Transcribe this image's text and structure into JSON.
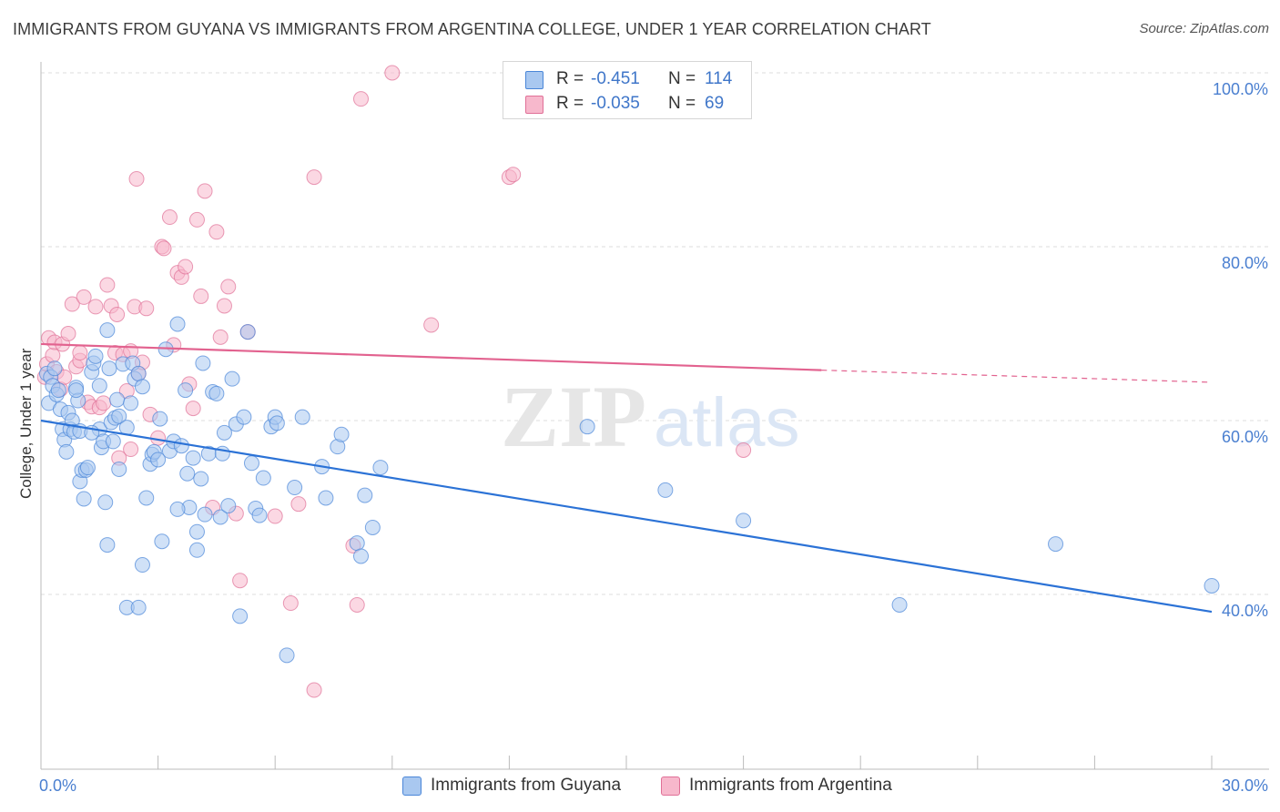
{
  "title": "IMMIGRANTS FROM GUYANA VS IMMIGRANTS FROM ARGENTINA COLLEGE, UNDER 1 YEAR CORRELATION CHART",
  "source": "Source: ZipAtlas.com",
  "watermark": "ZIPatlas",
  "legend": {
    "rows": [
      {
        "r_label": "R =",
        "r_value": "-0.451",
        "n_label": "N =",
        "n_value": "114",
        "color": "#a9c8f0"
      },
      {
        "r_label": "R =",
        "r_value": "-0.035",
        "n_label": "N =",
        "n_value": "69",
        "color": "#f7b8cc"
      }
    ]
  },
  "bottom_legend": [
    {
      "label": "Immigrants from Guyana",
      "color": "#a9c8f0"
    },
    {
      "label": "Immigrants from Argentina",
      "color": "#f7b8cc"
    }
  ],
  "chart_data": {
    "type": "scatter",
    "title": "IMMIGRANTS FROM GUYANA VS IMMIGRANTS FROM ARGENTINA COLLEGE, UNDER 1 YEAR CORRELATION CHART",
    "xlabel": "",
    "ylabel": "College, Under 1 year",
    "xlim": [
      0,
      30
    ],
    "ylim": [
      20,
      102
    ],
    "x_ticks": [
      "0.0%",
      "30.0%"
    ],
    "y_ticks": [
      "100.0%",
      "80.0%",
      "60.0%",
      "40.0%"
    ],
    "y_tick_values": [
      100,
      80,
      60,
      40
    ],
    "grid": true,
    "series": [
      {
        "name": "Immigrants from Guyana",
        "color": "#4a86d8",
        "fill": "#a9c8f0",
        "trend": {
          "x": [
            0,
            30
          ],
          "y": [
            60.0,
            38.0
          ],
          "dashed_from": 30
        },
        "points": [
          [
            0.15,
            65.4
          ],
          [
            0.2,
            62.0
          ],
          [
            0.25,
            65.0
          ],
          [
            0.3,
            64.0
          ],
          [
            0.35,
            66.0
          ],
          [
            0.4,
            63.0
          ],
          [
            0.45,
            63.5
          ],
          [
            0.5,
            61.3
          ],
          [
            0.55,
            59.0
          ],
          [
            0.6,
            57.8
          ],
          [
            0.65,
            56.4
          ],
          [
            0.7,
            60.9
          ],
          [
            0.75,
            59.0
          ],
          [
            0.8,
            60.0
          ],
          [
            0.85,
            58.7
          ],
          [
            0.9,
            63.8
          ],
          [
            0.95,
            62.3
          ],
          [
            1.0,
            58.8
          ],
          [
            1.0,
            53.0
          ],
          [
            1.05,
            54.3
          ],
          [
            1.1,
            51.0
          ],
          [
            1.15,
            54.3
          ],
          [
            1.2,
            54.6
          ],
          [
            1.3,
            65.6
          ],
          [
            1.35,
            66.6
          ],
          [
            1.4,
            67.4
          ],
          [
            1.5,
            64.0
          ],
          [
            1.5,
            59.0
          ],
          [
            1.55,
            56.9
          ],
          [
            1.6,
            57.6
          ],
          [
            1.65,
            50.6
          ],
          [
            1.7,
            70.4
          ],
          [
            1.75,
            66.0
          ],
          [
            1.8,
            59.8
          ],
          [
            1.85,
            57.6
          ],
          [
            1.9,
            60.3
          ],
          [
            1.95,
            62.4
          ],
          [
            2.0,
            60.5
          ],
          [
            2.0,
            54.4
          ],
          [
            2.1,
            66.5
          ],
          [
            2.2,
            59.2
          ],
          [
            2.3,
            62.0
          ],
          [
            2.35,
            66.6
          ],
          [
            2.4,
            64.8
          ],
          [
            2.5,
            65.4
          ],
          [
            2.6,
            63.9
          ],
          [
            2.7,
            51.1
          ],
          [
            2.8,
            55.0
          ],
          [
            2.85,
            56.1
          ],
          [
            2.9,
            56.4
          ],
          [
            3.0,
            55.5
          ],
          [
            3.05,
            60.2
          ],
          [
            3.1,
            46.1
          ],
          [
            3.2,
            68.2
          ],
          [
            3.3,
            56.5
          ],
          [
            3.4,
            57.6
          ],
          [
            3.5,
            71.1
          ],
          [
            3.6,
            57.1
          ],
          [
            3.7,
            63.5
          ],
          [
            3.75,
            53.9
          ],
          [
            3.8,
            50.0
          ],
          [
            3.9,
            55.7
          ],
          [
            4.0,
            47.2
          ],
          [
            4.0,
            45.1
          ],
          [
            4.1,
            53.3
          ],
          [
            4.15,
            66.6
          ],
          [
            4.2,
            49.2
          ],
          [
            4.3,
            56.2
          ],
          [
            4.4,
            63.3
          ],
          [
            4.5,
            63.1
          ],
          [
            4.6,
            48.9
          ],
          [
            4.65,
            56.2
          ],
          [
            4.7,
            58.6
          ],
          [
            4.8,
            50.2
          ],
          [
            4.9,
            64.8
          ],
          [
            5.0,
            59.6
          ],
          [
            5.1,
            37.5
          ],
          [
            5.2,
            60.4
          ],
          [
            5.3,
            70.2
          ],
          [
            5.4,
            55.1
          ],
          [
            5.5,
            49.9
          ],
          [
            5.6,
            49.1
          ],
          [
            5.7,
            53.4
          ],
          [
            5.9,
            59.3
          ],
          [
            6.0,
            60.4
          ],
          [
            6.05,
            59.7
          ],
          [
            6.3,
            33.0
          ],
          [
            6.5,
            52.3
          ],
          [
            6.7,
            60.4
          ],
          [
            7.2,
            54.7
          ],
          [
            7.3,
            51.1
          ],
          [
            7.6,
            57.0
          ],
          [
            7.7,
            58.4
          ],
          [
            8.1,
            45.9
          ],
          [
            8.2,
            44.4
          ],
          [
            8.3,
            51.4
          ],
          [
            8.5,
            47.7
          ],
          [
            8.7,
            54.6
          ],
          [
            14.0,
            59.3
          ],
          [
            16.0,
            52.0
          ],
          [
            18.0,
            48.5
          ],
          [
            2.2,
            38.5
          ],
          [
            2.5,
            38.5
          ],
          [
            2.6,
            43.4
          ],
          [
            1.7,
            45.7
          ],
          [
            0.9,
            63.5
          ],
          [
            1.3,
            58.6
          ],
          [
            3.5,
            49.8
          ],
          [
            22.0,
            38.8
          ],
          [
            26.0,
            45.8
          ],
          [
            30.0,
            41.0
          ]
        ]
      },
      {
        "name": "Immigrants from Argentina",
        "color": "#e07097",
        "fill": "#f7b8cc",
        "trend": {
          "x": [
            0,
            20
          ],
          "y": [
            68.8,
            65.8
          ],
          "dashed_from": 20,
          "dashed_to": [
            30,
            64.4
          ]
        },
        "points": [
          [
            0.1,
            65.0
          ],
          [
            0.15,
            66.5
          ],
          [
            0.2,
            69.5
          ],
          [
            0.3,
            67.5
          ],
          [
            0.35,
            69.0
          ],
          [
            0.4,
            65.6
          ],
          [
            0.5,
            63.6
          ],
          [
            0.55,
            68.8
          ],
          [
            0.6,
            65.0
          ],
          [
            0.7,
            70.0
          ],
          [
            0.8,
            73.4
          ],
          [
            0.9,
            66.2
          ],
          [
            1.0,
            66.9
          ],
          [
            1.0,
            67.8
          ],
          [
            1.1,
            74.2
          ],
          [
            1.2,
            62.1
          ],
          [
            1.3,
            61.6
          ],
          [
            1.4,
            73.1
          ],
          [
            1.5,
            61.5
          ],
          [
            1.6,
            62.0
          ],
          [
            1.7,
            75.6
          ],
          [
            1.8,
            73.2
          ],
          [
            1.9,
            67.8
          ],
          [
            1.95,
            72.2
          ],
          [
            2.0,
            55.7
          ],
          [
            2.1,
            67.6
          ],
          [
            2.2,
            63.4
          ],
          [
            2.3,
            68.0
          ],
          [
            2.4,
            73.1
          ],
          [
            2.45,
            87.8
          ],
          [
            2.5,
            65.4
          ],
          [
            2.6,
            66.7
          ],
          [
            2.7,
            72.9
          ],
          [
            2.8,
            60.7
          ],
          [
            3.0,
            58.0
          ],
          [
            3.1,
            80.0
          ],
          [
            3.15,
            79.8
          ],
          [
            3.3,
            83.4
          ],
          [
            3.4,
            68.7
          ],
          [
            3.5,
            77.0
          ],
          [
            3.6,
            76.5
          ],
          [
            3.7,
            77.7
          ],
          [
            3.8,
            64.2
          ],
          [
            3.9,
            61.4
          ],
          [
            4.0,
            83.1
          ],
          [
            4.1,
            74.3
          ],
          [
            4.2,
            86.4
          ],
          [
            4.4,
            50.0
          ],
          [
            4.5,
            81.7
          ],
          [
            4.6,
            69.6
          ],
          [
            4.7,
            73.2
          ],
          [
            4.8,
            75.4
          ],
          [
            5.0,
            49.3
          ],
          [
            5.1,
            41.6
          ],
          [
            5.3,
            70.2
          ],
          [
            6.0,
            49.0
          ],
          [
            6.4,
            39.0
          ],
          [
            6.6,
            50.4
          ],
          [
            7.0,
            88.0
          ],
          [
            7.0,
            29.0
          ],
          [
            8.0,
            45.6
          ],
          [
            8.1,
            38.8
          ],
          [
            8.2,
            97.0
          ],
          [
            9.0,
            100.0
          ],
          [
            10.0,
            71.0
          ],
          [
            12.0,
            88.0
          ],
          [
            12.1,
            88.3
          ],
          [
            18.0,
            56.6
          ],
          [
            2.3,
            56.7
          ]
        ]
      }
    ]
  }
}
